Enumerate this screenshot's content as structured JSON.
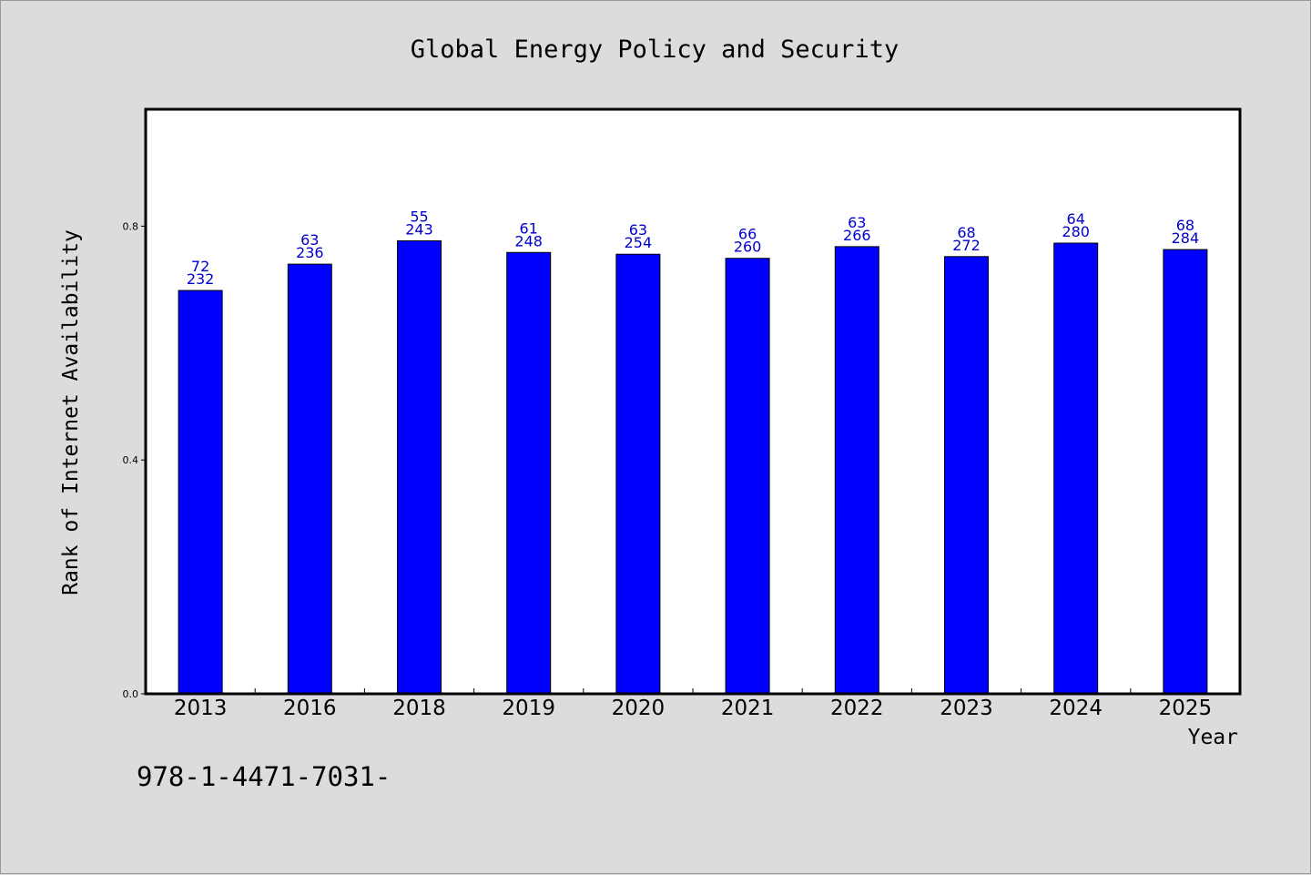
{
  "chart_data": {
    "type": "bar",
    "title": "Global Energy Policy and Security",
    "xlabel": "Year",
    "ylabel": "Rank of Internet Availability",
    "categories": [
      "2013",
      "2016",
      "2018",
      "2019",
      "2020",
      "2021",
      "2022",
      "2023",
      "2024",
      "2025"
    ],
    "values": [
      0.69,
      0.735,
      0.775,
      0.755,
      0.752,
      0.745,
      0.765,
      0.748,
      0.771,
      0.76
    ],
    "data_labels_top": [
      "72",
      "63",
      "55",
      "61",
      "63",
      "66",
      "63",
      "68",
      "64",
      "68"
    ],
    "data_labels_bottom": [
      "232",
      "236",
      "243",
      "248",
      "254",
      "260",
      "266",
      "272",
      "280",
      "284"
    ],
    "yticks": [
      0.0,
      0.4,
      0.8
    ],
    "ytick_labels": [
      "0.0",
      "0.4",
      "0.8"
    ],
    "ylim": [
      0.0,
      1.0
    ],
    "grid": false,
    "colors": {
      "bar": "#0000ff",
      "data_label": "#0000cc",
      "plot_bg": "#ffffff",
      "figure_bg": "#dcdcdc"
    }
  },
  "footnote": "978-1-4471-7031-"
}
